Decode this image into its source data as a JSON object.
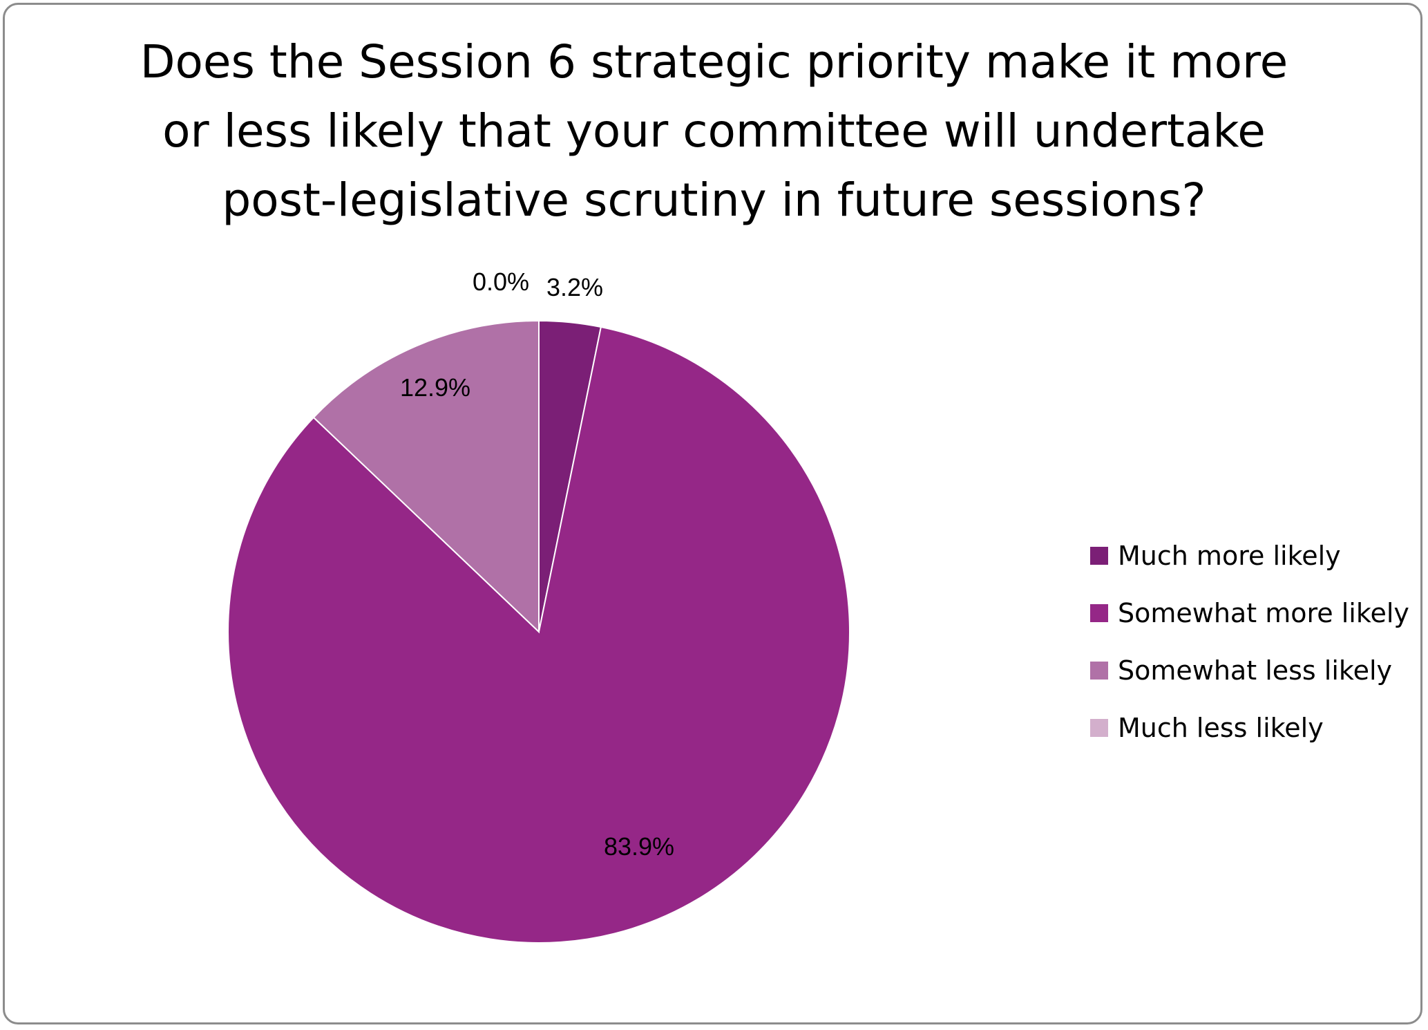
{
  "chart_data": {
    "type": "pie",
    "title_lines": [
      "Does the Session 6 strategic priority make it more",
      "or less likely that your committee will undertake",
      "post-legislative scrutiny in future sessions?"
    ],
    "slices": [
      {
        "label": "Much more likely",
        "value": 3.2,
        "display": "3.2%",
        "color": "#7B1F76"
      },
      {
        "label": "Somewhat more likely",
        "value": 83.9,
        "display": "83.9%",
        "color": "#952787"
      },
      {
        "label": "Somewhat less likely",
        "value": 12.9,
        "display": "12.9%",
        "color": "#B071A7"
      },
      {
        "label": "Much less likely",
        "value": 0.0,
        "display": "0.0%",
        "color": "#D3AFCC"
      }
    ],
    "start_angle": "12 o'clock",
    "direction": "clockwise",
    "legend_position": "right"
  }
}
